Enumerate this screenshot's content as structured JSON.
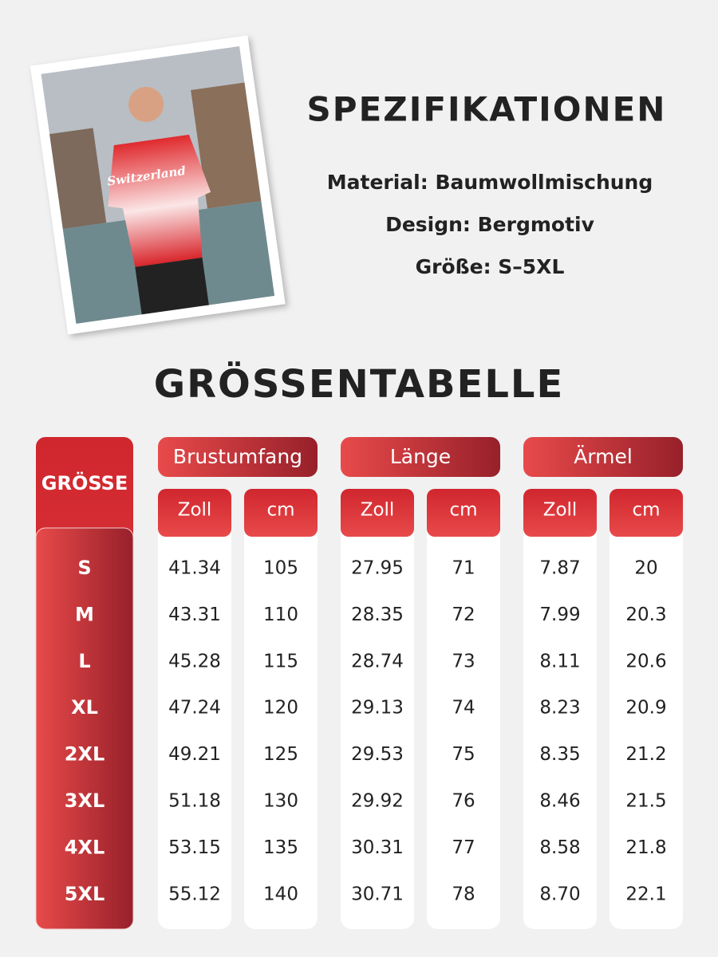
{
  "photo": {
    "shirt_text": "Switzerland"
  },
  "specs": {
    "title": "SPEZIFIKATIONEN",
    "items": [
      "Material: Baumwollmischung",
      "Design: Bergmotiv",
      "Größe: S–5XL"
    ]
  },
  "size_table": {
    "title": "GRÖSSENTABELLE",
    "size_header": "GRÖSSE",
    "groups": [
      {
        "name": "Brustumfang",
        "units": [
          "Zoll",
          "cm"
        ]
      },
      {
        "name": "Länge",
        "units": [
          "Zoll",
          "cm"
        ]
      },
      {
        "name": "Ärmel",
        "units": [
          "Zoll",
          "cm"
        ]
      }
    ],
    "rows": [
      {
        "size": "S",
        "cells": [
          "41.34",
          "105",
          "27.95",
          "71",
          "7.87",
          "20"
        ]
      },
      {
        "size": "M",
        "cells": [
          "43.31",
          "110",
          "28.35",
          "72",
          "7.99",
          "20.3"
        ]
      },
      {
        "size": "L",
        "cells": [
          "45.28",
          "115",
          "28.74",
          "73",
          "8.11",
          "20.6"
        ]
      },
      {
        "size": "XL",
        "cells": [
          "47.24",
          "120",
          "29.13",
          "74",
          "8.23",
          "20.9"
        ]
      },
      {
        "size": "2XL",
        "cells": [
          "49.21",
          "125",
          "29.53",
          "75",
          "8.35",
          "21.2"
        ]
      },
      {
        "size": "3XL",
        "cells": [
          "51.18",
          "130",
          "29.92",
          "76",
          "8.46",
          "21.5"
        ]
      },
      {
        "size": "4XL",
        "cells": [
          "53.15",
          "135",
          "30.31",
          "77",
          "8.58",
          "21.8"
        ]
      },
      {
        "size": "5XL",
        "cells": [
          "55.12",
          "140",
          "30.71",
          "78",
          "8.70",
          "22.1"
        ]
      }
    ]
  }
}
